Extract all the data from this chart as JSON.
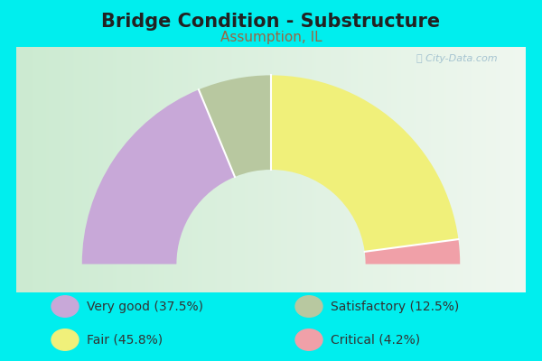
{
  "title": "Bridge Condition - Substructure",
  "subtitle": "Assumption, IL",
  "background_color": "#00EEEE",
  "chart_bg_left": "#cce8cc",
  "chart_bg_right": "#e8f5e8",
  "segments": [
    {
      "label": "Very good (37.5%)",
      "value": 37.5,
      "color": "#c8a8d8"
    },
    {
      "label": "Satisfactory (12.5%)",
      "value": 12.5,
      "color": "#b8c8a0"
    },
    {
      "label": "Fair (45.8%)",
      "value": 45.8,
      "color": "#f0f07a"
    },
    {
      "label": "Critical (4.2%)",
      "value": 4.2,
      "color": "#f0a0a8"
    }
  ],
  "title_color": "#222222",
  "subtitle_color": "#996644",
  "title_fontsize": 15,
  "subtitle_fontsize": 11,
  "legend_fontsize": 10,
  "watermark": "ⓘ City-Data.com",
  "outer_r": 1.0,
  "inner_r": 0.5
}
